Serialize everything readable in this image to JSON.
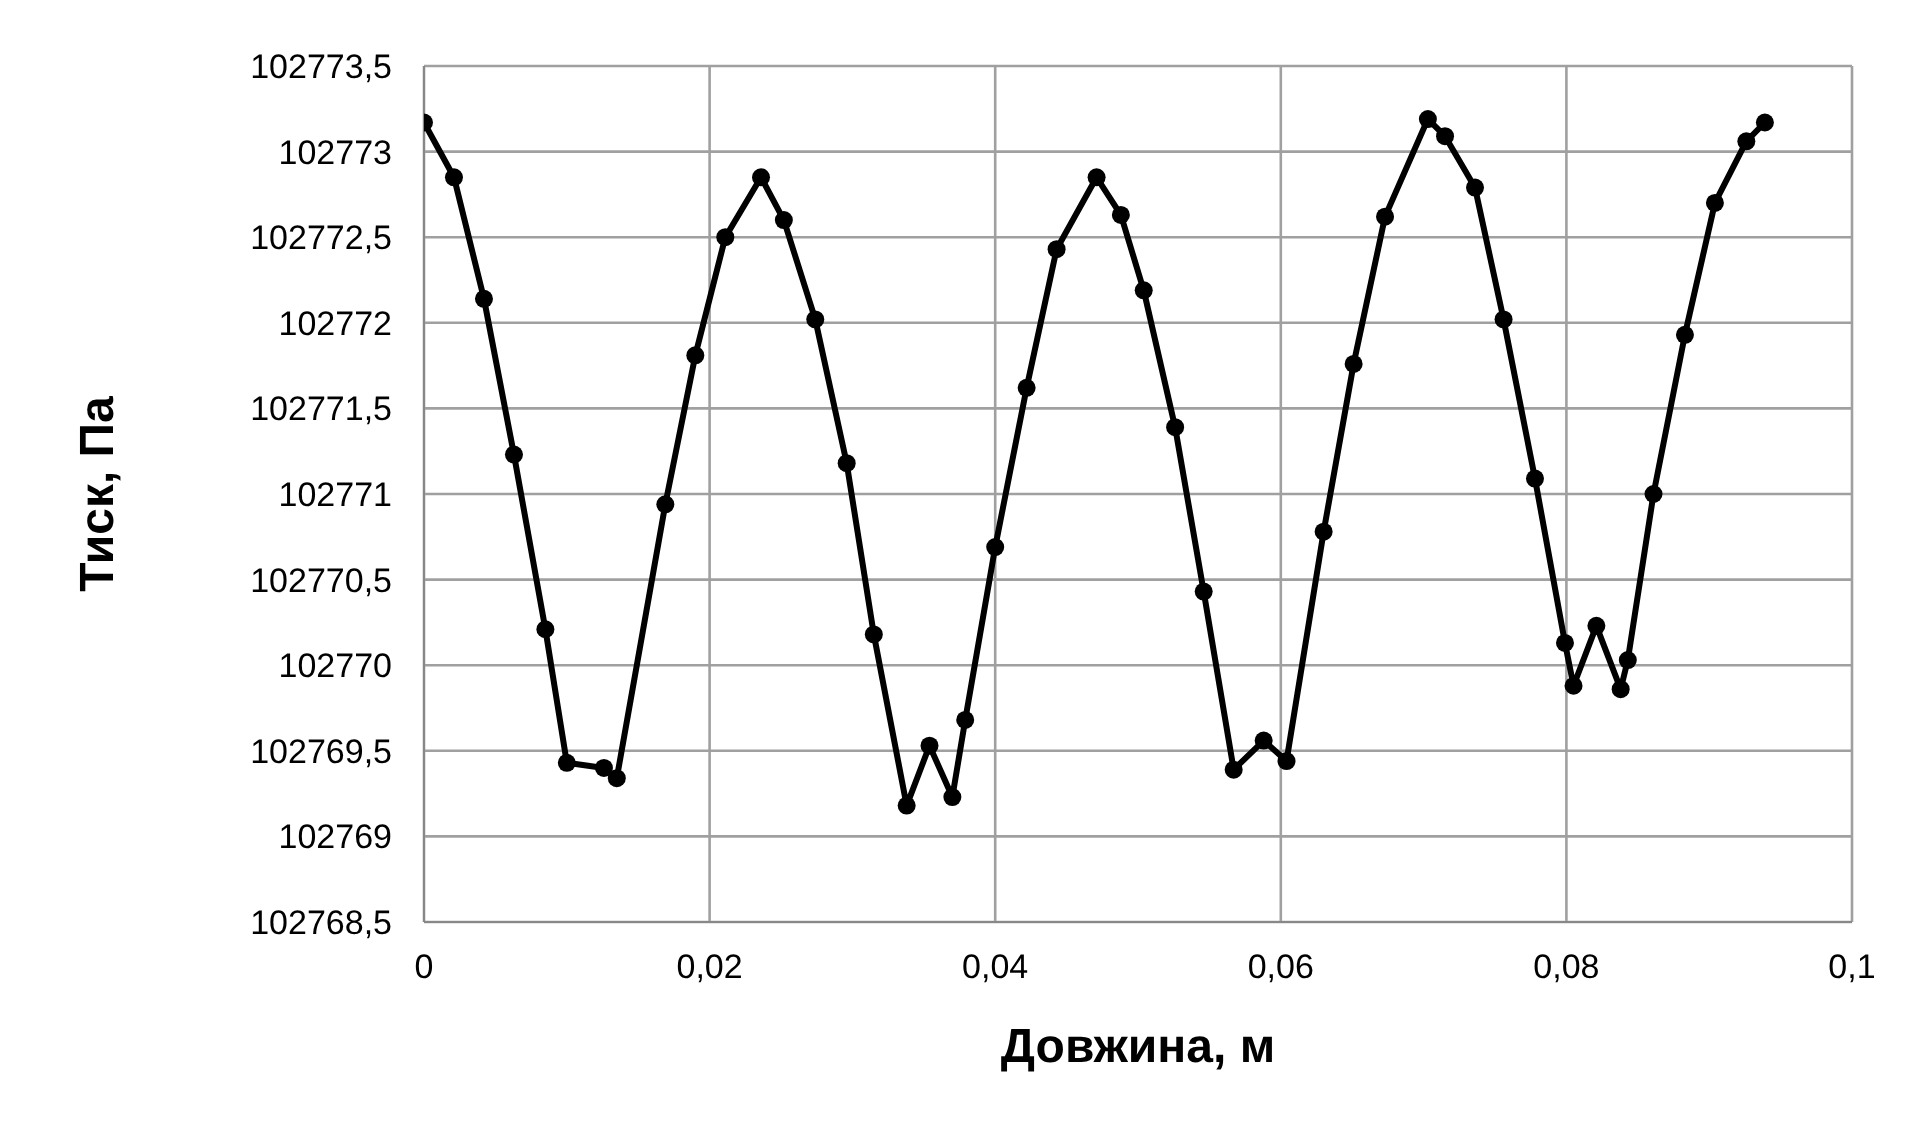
{
  "chart_data": {
    "type": "line",
    "xlabel": "Довжина, м",
    "ylabel": "Тиск, Па",
    "x": [
      0,
      0.0021,
      0.0042,
      0.0063,
      0.0085,
      0.01,
      0.0126,
      0.0135,
      0.0169,
      0.019,
      0.0211,
      0.0236,
      0.0252,
      0.0274,
      0.0296,
      0.0315,
      0.0338,
      0.0354,
      0.037,
      0.0379,
      0.04,
      0.0422,
      0.0443,
      0.0471,
      0.0488,
      0.0504,
      0.0526,
      0.0546,
      0.0567,
      0.0588,
      0.0604,
      0.063,
      0.0651,
      0.0673,
      0.0703,
      0.0715,
      0.0736,
      0.0756,
      0.0778,
      0.0799,
      0.0805,
      0.0821,
      0.0838,
      0.0843,
      0.0861,
      0.0883,
      0.0904,
      0.0926,
      0.0939
    ],
    "series": [
      {
        "color": "#000000",
        "values": [
          102773.17,
          102772.85,
          102772.14,
          102771.23,
          102770.21,
          102769.43,
          102769.4,
          102769.34,
          102770.94,
          102771.81,
          102772.5,
          102772.85,
          102772.6,
          102772.02,
          102771.18,
          102770.18,
          102769.18,
          102769.53,
          102769.23,
          102769.68,
          102770.69,
          102771.62,
          102772.43,
          102772.85,
          102772.63,
          102772.19,
          102771.39,
          102770.43,
          102769.39,
          102769.56,
          102769.44,
          102770.78,
          102771.76,
          102772.62,
          102773.19,
          102773.09,
          102772.79,
          102772.02,
          102771.09,
          102770.13,
          102769.88,
          102770.23,
          102769.86,
          102770.03,
          102771.0,
          102771.93,
          102772.7,
          102773.06,
          102773.17
        ]
      }
    ],
    "xlim": [
      0,
      0.1
    ],
    "xticks": [
      0,
      {
        "value": 0.02,
        "label": "0,02"
      },
      {
        "value": 0.04,
        "label": "0,04"
      },
      {
        "value": 0.06,
        "label": "0,06"
      },
      {
        "value": 0.08,
        "label": "0,08"
      },
      {
        "value": 0.1,
        "label": "0,1"
      }
    ],
    "ylim": [
      102768.5,
      102773.5
    ],
    "yticks": [
      {
        "value": 102768.5,
        "label": "102768,5"
      },
      102769,
      {
        "value": 102769.5,
        "label": "102769,5"
      },
      102770,
      {
        "value": 102770.5,
        "label": "102770,5"
      },
      102771,
      {
        "value": 102771.5,
        "label": "102771,5"
      },
      102772,
      {
        "value": 102772.5,
        "label": "102772,5"
      },
      102773,
      {
        "value": 102773.5,
        "label": "102773,5"
      }
    ],
    "grid": true,
    "marker": "circle",
    "line_style": "solid"
  }
}
